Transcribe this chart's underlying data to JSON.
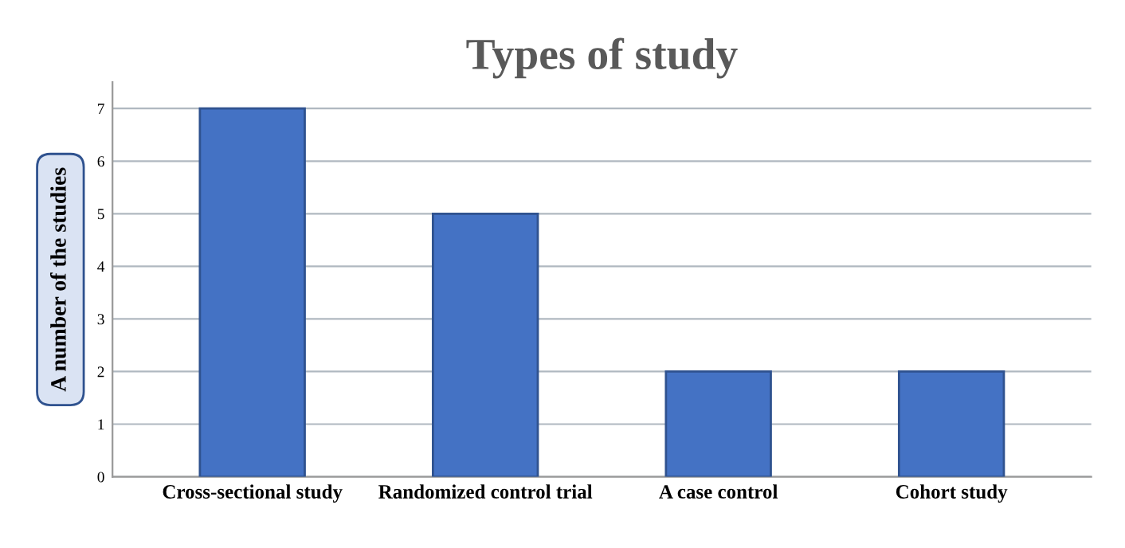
{
  "chart_data": {
    "type": "bar",
    "title": "Types of study",
    "ylabel": "A number of the studies",
    "categories": [
      "Cross-sectional study",
      "Randomized control trial",
      "A case control",
      "Cohort study"
    ],
    "values": [
      7,
      5,
      2,
      2
    ],
    "color": "#4472c4",
    "ylim": [
      0,
      7.5
    ],
    "yticks": [
      0,
      1,
      2,
      3,
      4,
      5,
      6,
      7
    ],
    "grid": "y"
  }
}
